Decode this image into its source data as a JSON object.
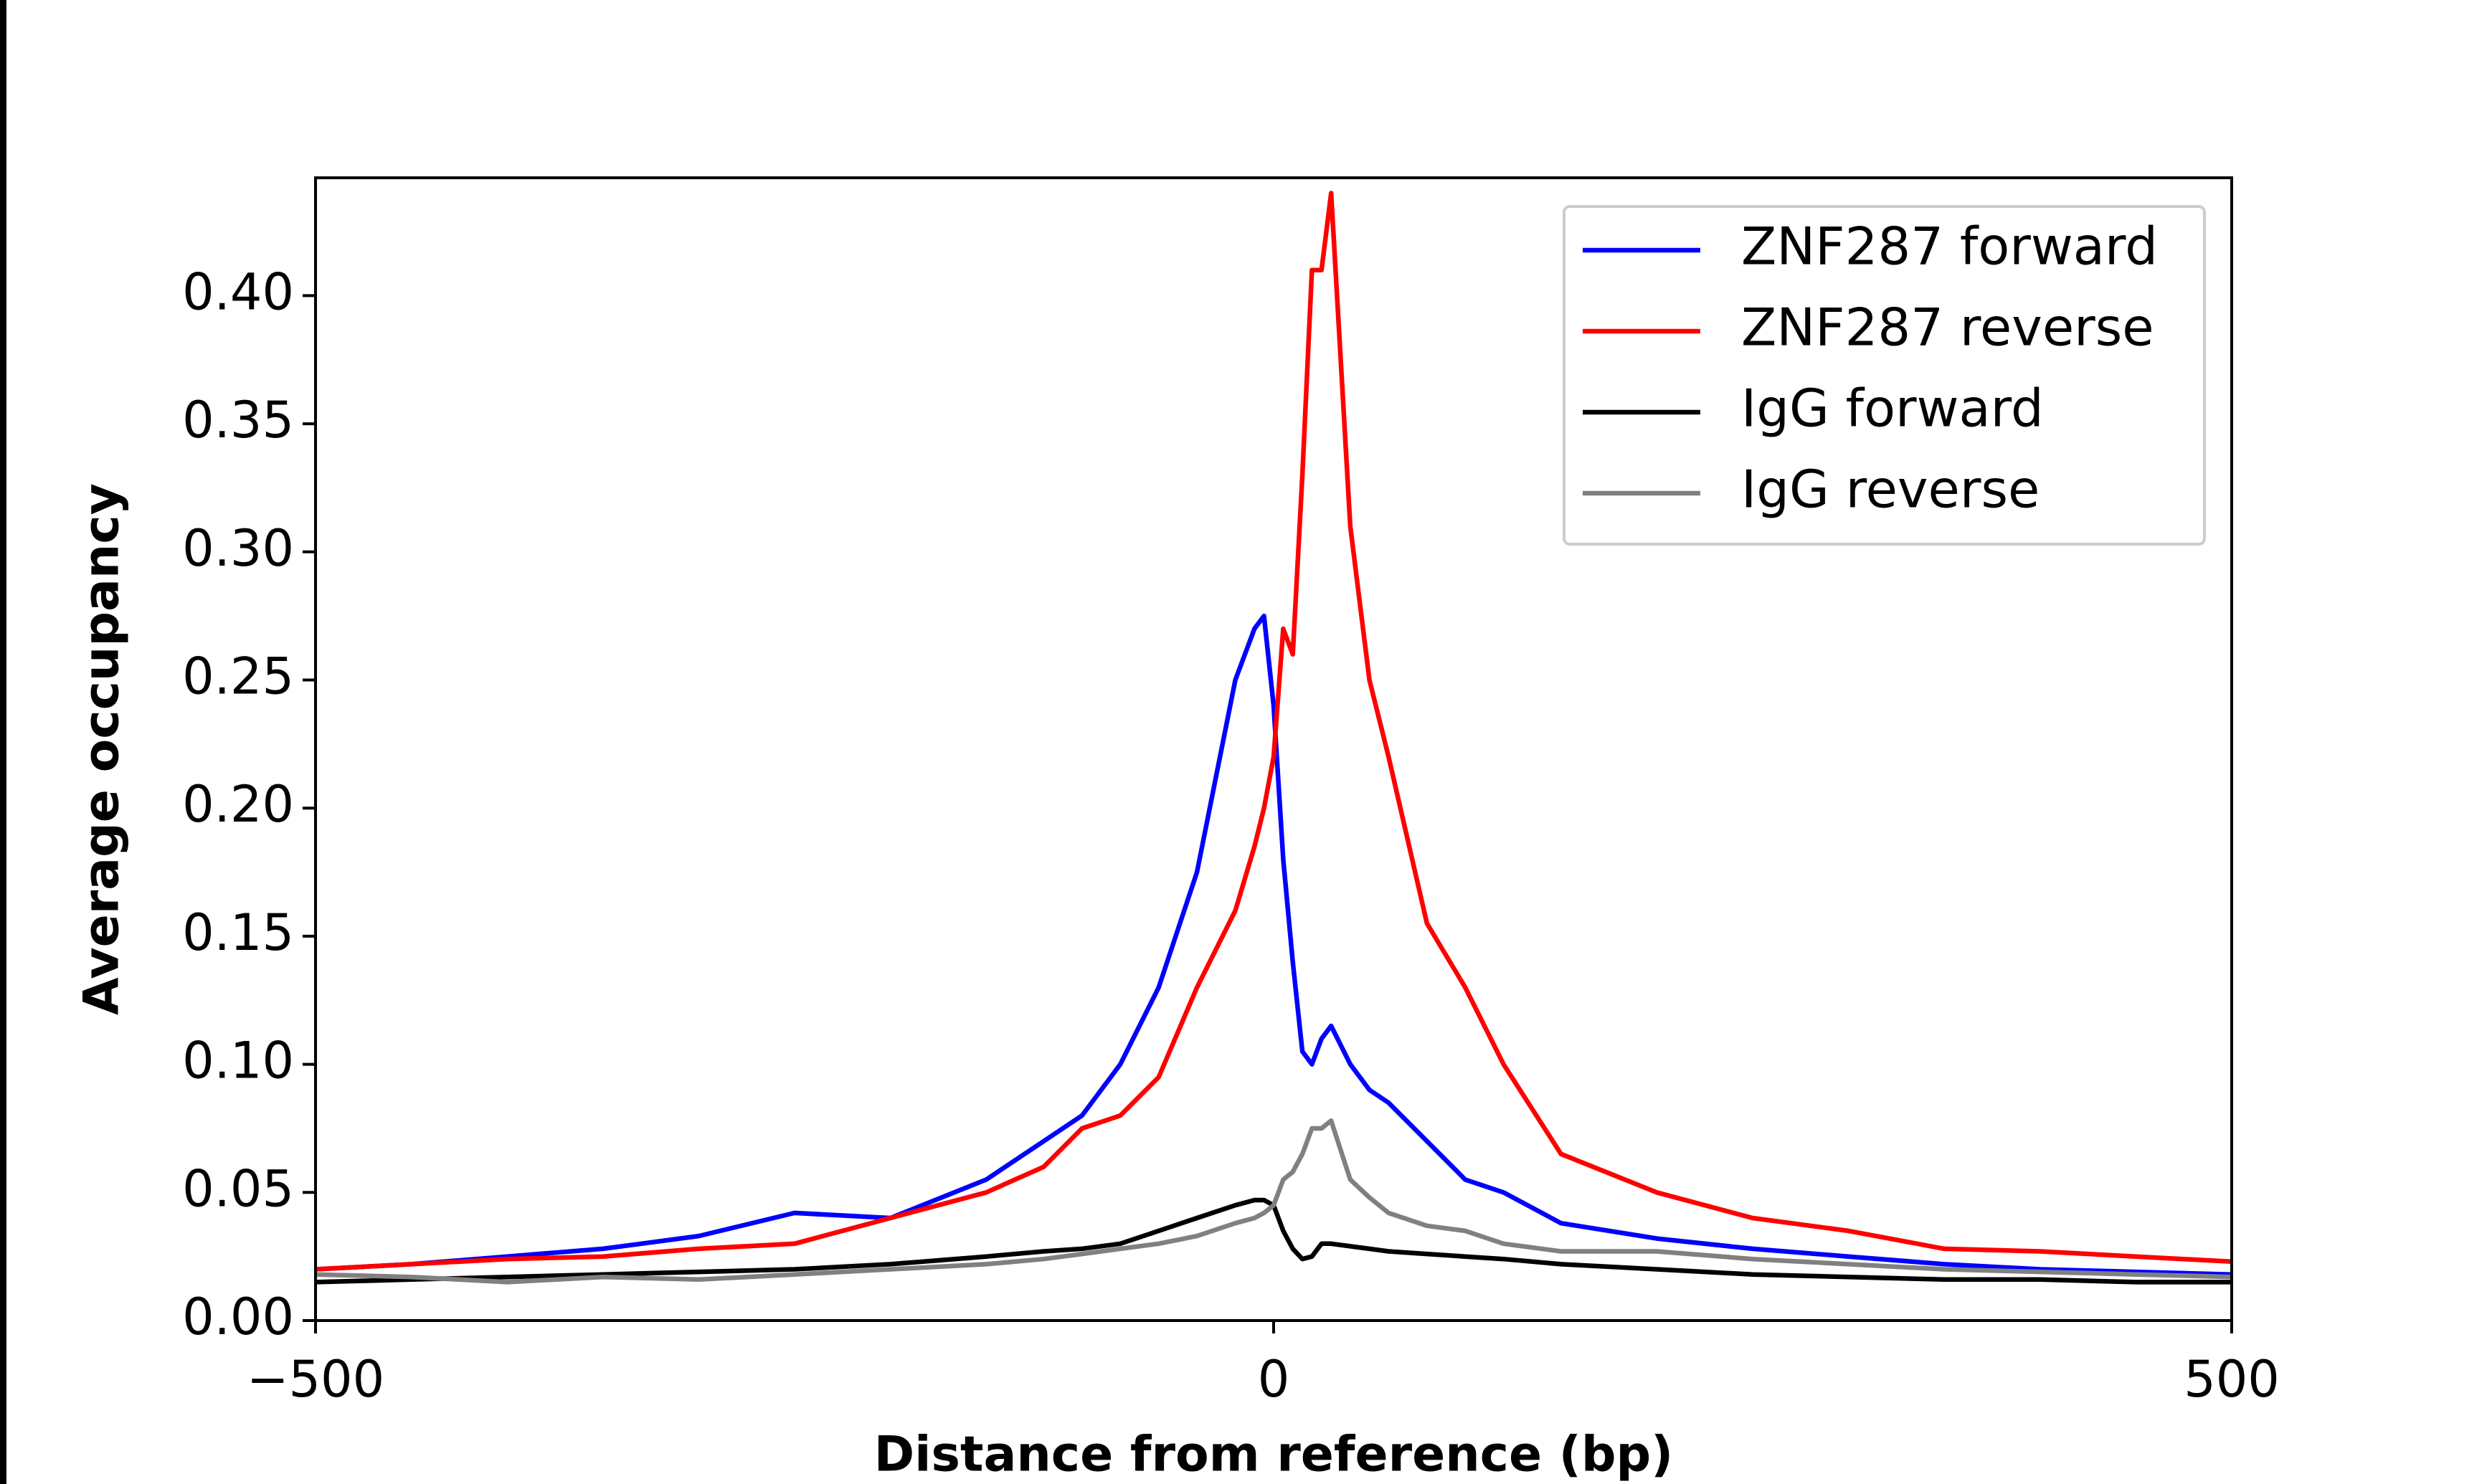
{
  "chart_data": {
    "type": "line",
    "xlabel": "Distance from reference (bp)",
    "ylabel": "Average occupancy",
    "x": [
      -500,
      -450,
      -400,
      -350,
      -300,
      -250,
      -200,
      -150,
      -120,
      -100,
      -80,
      -60,
      -40,
      -20,
      -10,
      -5,
      0,
      5,
      10,
      15,
      20,
      25,
      30,
      40,
      50,
      60,
      80,
      100,
      120,
      150,
      200,
      250,
      300,
      350,
      400,
      450,
      500
    ],
    "series": [
      {
        "name": "ZNF287 forward",
        "color": "#0000ff",
        "values": [
          0.02,
          0.022,
          0.025,
          0.028,
          0.033,
          0.042,
          0.04,
          0.055,
          0.07,
          0.08,
          0.1,
          0.13,
          0.175,
          0.25,
          0.27,
          0.275,
          0.24,
          0.18,
          0.14,
          0.105,
          0.1,
          0.11,
          0.115,
          0.1,
          0.09,
          0.085,
          0.07,
          0.055,
          0.05,
          0.038,
          0.032,
          0.028,
          0.025,
          0.022,
          0.02,
          0.019,
          0.018
        ]
      },
      {
        "name": "ZNF287 reverse",
        "color": "#ff0000",
        "values": [
          0.02,
          0.022,
          0.024,
          0.025,
          0.028,
          0.03,
          0.04,
          0.05,
          0.06,
          0.075,
          0.08,
          0.095,
          0.13,
          0.16,
          0.185,
          0.2,
          0.22,
          0.27,
          0.26,
          0.33,
          0.41,
          0.41,
          0.44,
          0.31,
          0.25,
          0.22,
          0.155,
          0.13,
          0.1,
          0.065,
          0.05,
          0.04,
          0.035,
          0.028,
          0.027,
          0.025,
          0.023
        ]
      },
      {
        "name": "IgG forward",
        "color": "#000000",
        "values": [
          0.015,
          0.016,
          0.017,
          0.018,
          0.019,
          0.02,
          0.022,
          0.025,
          0.027,
          0.028,
          0.03,
          0.035,
          0.04,
          0.045,
          0.047,
          0.047,
          0.045,
          0.035,
          0.028,
          0.024,
          0.025,
          0.03,
          0.03,
          0.029,
          0.028,
          0.027,
          0.026,
          0.025,
          0.024,
          0.022,
          0.02,
          0.018,
          0.017,
          0.016,
          0.016,
          0.015,
          0.015
        ]
      },
      {
        "name": "IgG reverse",
        "color": "#808080",
        "values": [
          0.018,
          0.017,
          0.015,
          0.017,
          0.016,
          0.018,
          0.02,
          0.022,
          0.024,
          0.026,
          0.028,
          0.03,
          0.033,
          0.038,
          0.04,
          0.042,
          0.045,
          0.055,
          0.058,
          0.065,
          0.075,
          0.075,
          0.078,
          0.055,
          0.048,
          0.042,
          0.037,
          0.035,
          0.03,
          0.027,
          0.027,
          0.024,
          0.022,
          0.02,
          0.019,
          0.018,
          0.017
        ]
      }
    ],
    "xlim": [
      -500,
      500
    ],
    "xticks": [
      {
        "value": -500,
        "label": "−500"
      },
      0,
      500
    ],
    "ylim": [
      0,
      0.446
    ],
    "yticks": [
      {
        "value": 0,
        "label": "0.00"
      },
      {
        "value": 0.05,
        "label": "0.05"
      },
      {
        "value": 0.1,
        "label": "0.10"
      },
      {
        "value": 0.15,
        "label": "0.15"
      },
      {
        "value": 0.2,
        "label": "0.20"
      },
      {
        "value": 0.25,
        "label": "0.25"
      },
      {
        "value": 0.3,
        "label": "0.30"
      },
      {
        "value": 0.35,
        "label": "0.35"
      },
      {
        "value": 0.4,
        "label": "0.40"
      }
    ],
    "legend": "upper right",
    "grid": false
  }
}
